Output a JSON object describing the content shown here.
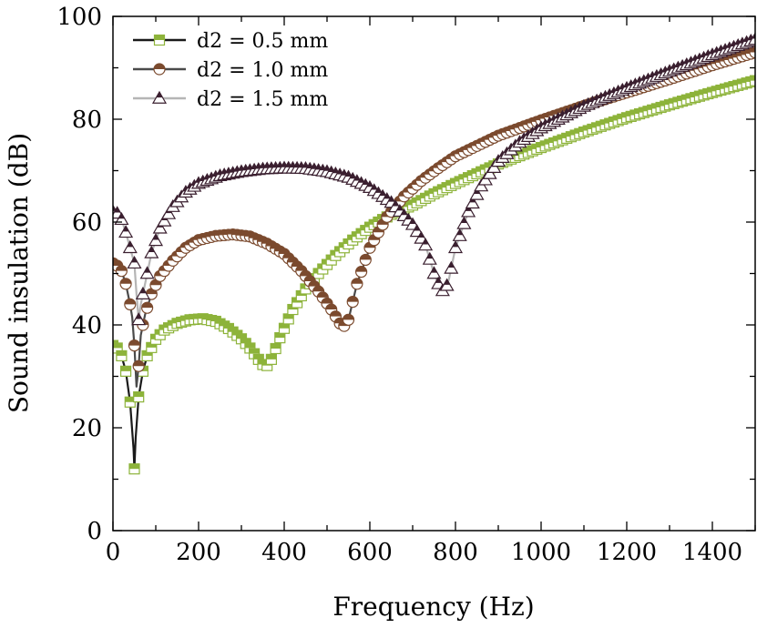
{
  "chart_data": {
    "type": "line",
    "title": "",
    "xlabel": "Frequency (Hz)",
    "ylabel": "Sound insulation (dB)",
    "xlim": [
      0,
      1500
    ],
    "ylim": [
      0,
      100
    ],
    "xticks": [
      0,
      200,
      400,
      600,
      800,
      1000,
      1200,
      1400
    ],
    "yticks": [
      0,
      20,
      40,
      60,
      80,
      100
    ],
    "grid": false,
    "legend_position": "top-left",
    "series": [
      {
        "name": "d2 = 0.5 mm",
        "color": "#8db33a",
        "line_color": "#1a1a1a",
        "marker": "half-square",
        "points": [
          [
            0,
            36
          ],
          [
            10,
            35.5
          ],
          [
            20,
            34
          ],
          [
            30,
            31
          ],
          [
            40,
            25
          ],
          [
            48,
            16
          ],
          [
            50,
            12
          ],
          [
            53,
            18
          ],
          [
            60,
            26
          ],
          [
            70,
            31
          ],
          [
            80,
            34
          ],
          [
            100,
            37.2
          ],
          [
            120,
            39
          ],
          [
            150,
            40.3
          ],
          [
            180,
            41
          ],
          [
            210,
            41.2
          ],
          [
            240,
            40.7
          ],
          [
            270,
            39.3
          ],
          [
            300,
            37.3
          ],
          [
            320,
            35.5
          ],
          [
            340,
            33.3
          ],
          [
            350,
            32.3
          ],
          [
            360,
            32.1
          ],
          [
            370,
            33.3
          ],
          [
            390,
            37.5
          ],
          [
            420,
            43
          ],
          [
            450,
            47
          ],
          [
            480,
            50
          ],
          [
            520,
            53.5
          ],
          [
            560,
            56.5
          ],
          [
            600,
            59
          ],
          [
            650,
            61.5
          ],
          [
            700,
            63.3
          ],
          [
            750,
            65.5
          ],
          [
            800,
            67.5
          ],
          [
            900,
            71.3
          ],
          [
            1000,
            74.5
          ],
          [
            1100,
            77.5
          ],
          [
            1200,
            80.3
          ],
          [
            1300,
            82.8
          ],
          [
            1400,
            85.2
          ],
          [
            1500,
            87.5
          ]
        ]
      },
      {
        "name": "d2 = 1.0 mm",
        "color": "#7b4a2e",
        "line_color": "#4a4a4a",
        "marker": "half-circle",
        "points": [
          [
            0,
            52
          ],
          [
            10,
            51.5
          ],
          [
            20,
            50.5
          ],
          [
            30,
            48
          ],
          [
            40,
            44
          ],
          [
            45,
            41.5
          ],
          [
            50,
            36
          ],
          [
            55,
            28
          ],
          [
            60,
            32
          ],
          [
            65,
            38
          ],
          [
            75,
            42
          ],
          [
            90,
            46
          ],
          [
            110,
            49.5
          ],
          [
            140,
            52.5
          ],
          [
            170,
            55
          ],
          [
            200,
            56.5
          ],
          [
            240,
            57.3
          ],
          [
            280,
            57.6
          ],
          [
            320,
            57.2
          ],
          [
            360,
            55.8
          ],
          [
            400,
            53.8
          ],
          [
            440,
            50.5
          ],
          [
            480,
            46.5
          ],
          [
            510,
            43
          ],
          [
            530,
            40.3
          ],
          [
            540,
            39.8
          ],
          [
            550,
            41
          ],
          [
            570,
            48
          ],
          [
            600,
            55
          ],
          [
            640,
            61
          ],
          [
            680,
            65
          ],
          [
            720,
            68
          ],
          [
            760,
            70.5
          ],
          [
            800,
            72.8
          ],
          [
            900,
            76.8
          ],
          [
            1000,
            79.8
          ],
          [
            1100,
            82.6
          ],
          [
            1200,
            85.2
          ],
          [
            1300,
            87.8
          ],
          [
            1400,
            90.5
          ],
          [
            1500,
            93
          ]
        ]
      },
      {
        "name": "d2 = 1.5 mm",
        "color": "#3a1f2f",
        "line_color": "#b5b5b5",
        "marker": "half-triangle",
        "points": [
          [
            0,
            62
          ],
          [
            10,
            61.7
          ],
          [
            20,
            60.5
          ],
          [
            30,
            58
          ],
          [
            40,
            55
          ],
          [
            50,
            52
          ],
          [
            55,
            46
          ],
          [
            60,
            41
          ],
          [
            65,
            44
          ],
          [
            75,
            48
          ],
          [
            90,
            54
          ],
          [
            110,
            58.8
          ],
          [
            140,
            63
          ],
          [
            170,
            65.8
          ],
          [
            200,
            67.5
          ],
          [
            250,
            69
          ],
          [
            300,
            69.8
          ],
          [
            350,
            70.3
          ],
          [
            400,
            70.5
          ],
          [
            450,
            70.4
          ],
          [
            500,
            69.8
          ],
          [
            550,
            68.7
          ],
          [
            600,
            66.7
          ],
          [
            650,
            63.8
          ],
          [
            700,
            59.5
          ],
          [
            730,
            55.5
          ],
          [
            750,
            50
          ],
          [
            765,
            47
          ],
          [
            775,
            46.3
          ],
          [
            785,
            49
          ],
          [
            800,
            55
          ],
          [
            830,
            62
          ],
          [
            860,
            67
          ],
          [
            900,
            71.8
          ],
          [
            950,
            75.5
          ],
          [
            1000,
            78.3
          ],
          [
            1100,
            82.5
          ],
          [
            1200,
            86
          ],
          [
            1300,
            89.3
          ],
          [
            1400,
            92.5
          ],
          [
            1500,
            95.5
          ]
        ]
      }
    ]
  }
}
